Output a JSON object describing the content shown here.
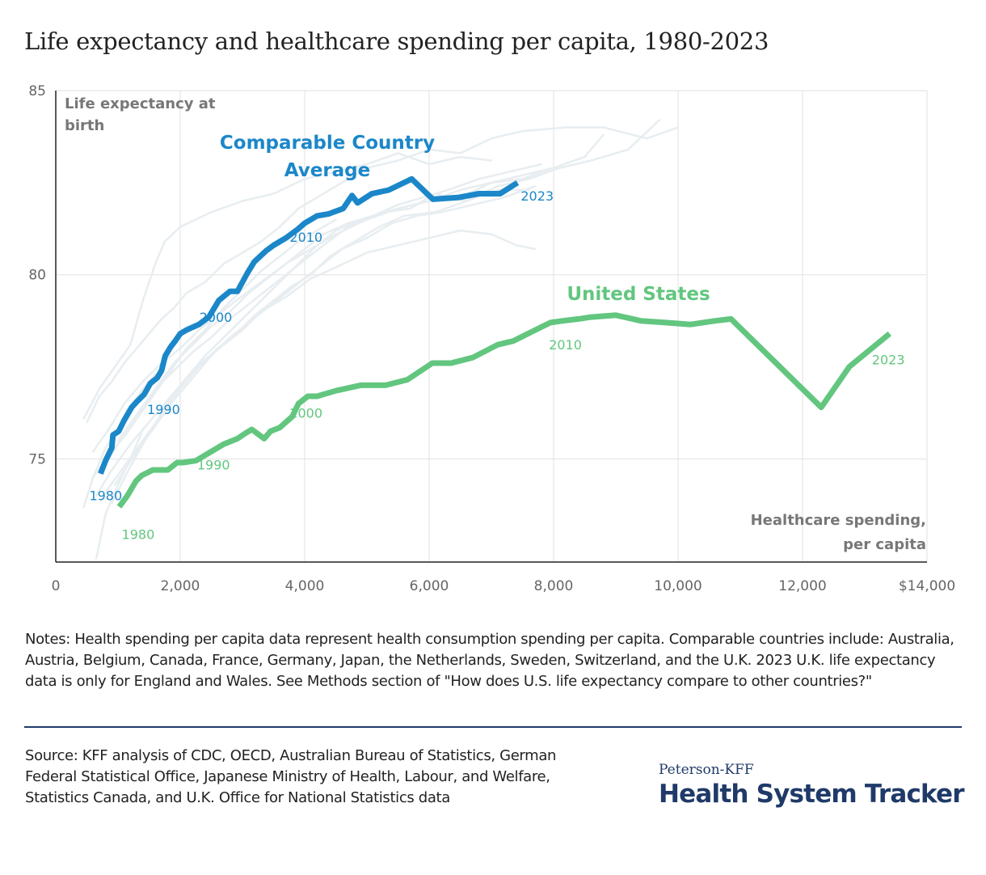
{
  "title": "Life expectancy and healthcare spending per capita, 1980-2023",
  "notes": "Notes: Health spending per capita data represent health consumption spending per capita. Comparable countries include: Australia, Austria, Belgium, Canada, France, Germany, Japan, the Netherlands, Sweden, Switzerland, and the U.K. 2023 U.K. life expectancy data is only for England and Wales. See Methods section of \"How does U.S. life expectancy compare to other countries?\"",
  "source": "Source: KFF analysis of CDC, OECD, Australian Bureau of Statistics, German Federal Statistical Office, Japanese Ministry of Health, Labour, and Welfare, Statistics Canada, and U.K. Office for National Statistics data",
  "brand": {
    "top": "Peterson-KFF",
    "main": "Health System Tracker"
  },
  "colors": {
    "comparable": "#1b87c9",
    "us": "#62c67f",
    "background_lines": "#e7edf0",
    "grid": "#e2e2e2",
    "axis": "#222222",
    "axis_label": "#777777",
    "tick_label": "#666666"
  },
  "chart_data": {
    "type": "line",
    "title": "Life expectancy and healthcare spending per capita, 1980-2023",
    "ylabel": "Life expectancy at birth",
    "xlabel": "Healthcare spending, per capita",
    "xlim": [
      0,
      14000
    ],
    "ylim": [
      72.2,
      85
    ],
    "x_ticks": [
      0,
      2000,
      4000,
      6000,
      8000,
      10000,
      12000,
      14000
    ],
    "x_tick_labels": [
      "0",
      "2,000",
      "4,000",
      "6,000",
      "8,000",
      "10,000",
      "12,000",
      "$14,000"
    ],
    "y_ticks": [
      75,
      80,
      85
    ],
    "y_tick_labels": [
      "75",
      "80",
      "85"
    ],
    "grid": true,
    "series": [
      {
        "name": "Comparable Country Average",
        "color": "#1b87c9",
        "x": [
          720,
          800,
          900,
          920,
          1010,
          1100,
          1220,
          1300,
          1420,
          1520,
          1630,
          1700,
          1760,
          1850,
          1920,
          2000,
          2100,
          2300,
          2460,
          2620,
          2800,
          2920,
          3080,
          3190,
          3380,
          3500,
          3700,
          3900,
          4000,
          4200,
          4380,
          4620,
          4760,
          4850,
          5080,
          5350,
          5720,
          6060,
          6480,
          6800,
          7140,
          7420
        ],
        "y": [
          74.6,
          74.95,
          75.3,
          75.65,
          75.75,
          76.05,
          76.4,
          76.55,
          76.75,
          77.05,
          77.2,
          77.4,
          77.8,
          78.05,
          78.2,
          78.4,
          78.5,
          78.65,
          78.85,
          79.3,
          79.55,
          79.55,
          80.05,
          80.35,
          80.65,
          80.8,
          81.0,
          81.25,
          81.4,
          81.6,
          81.65,
          81.8,
          82.15,
          81.95,
          82.2,
          82.3,
          82.6,
          82.05,
          82.1,
          82.2,
          82.2,
          82.5
        ],
        "year_labels": [
          {
            "year": "1980",
            "x": 720,
            "y": 74.6
          },
          {
            "year": "1990",
            "x": 1520,
            "y": 77.05
          },
          {
            "year": "2000",
            "x": 2800,
            "y": 79.55
          },
          {
            "year": "2010",
            "x": 4200,
            "y": 81.6
          },
          {
            "year": "2023",
            "x": 7420,
            "y": 82.5
          }
        ]
      },
      {
        "name": "United States",
        "color": "#62c67f",
        "x": [
          1020,
          1150,
          1290,
          1380,
          1560,
          1800,
          1950,
          2050,
          2250,
          2450,
          2700,
          2920,
          3050,
          3150,
          3350,
          3450,
          3600,
          3800,
          3900,
          4050,
          4200,
          4500,
          4900,
          5300,
          5650,
          6050,
          6350,
          6700,
          7100,
          7350,
          7650,
          7950,
          8150,
          8400,
          8600,
          9000,
          9400,
          9800,
          10200,
          10600,
          10850,
          12300,
          12750,
          13400
        ],
        "y": [
          73.7,
          74.0,
          74.4,
          74.55,
          74.7,
          74.7,
          74.9,
          74.9,
          74.95,
          75.15,
          75.4,
          75.55,
          75.7,
          75.8,
          75.55,
          75.75,
          75.85,
          76.15,
          76.5,
          76.7,
          76.7,
          76.85,
          77.0,
          77.0,
          77.15,
          77.6,
          77.6,
          77.75,
          78.1,
          78.2,
          78.45,
          78.7,
          78.75,
          78.8,
          78.85,
          78.9,
          78.75,
          78.7,
          78.65,
          78.75,
          78.8,
          76.4,
          77.5,
          78.4
        ],
        "year_labels": [
          {
            "year": "1980",
            "x": 1020,
            "y": 73.7
          },
          {
            "year": "1990",
            "x": 2920,
            "y": 75.55
          },
          {
            "year": "2000",
            "x": 4900,
            "y": 77.0
          },
          {
            "year": "2010",
            "x": 8600,
            "y": 78.85
          },
          {
            "year": "2023",
            "x": 13400,
            "y": 78.4
          }
        ]
      }
    ],
    "background_series": [
      {
        "x": [
          450,
          700,
          950,
          1200,
          1400,
          1600,
          1750,
          2000,
          2500,
          3000,
          3500,
          4000,
          4500,
          5000,
          5500,
          6000,
          6500,
          7000
        ],
        "y": [
          76.1,
          76.9,
          77.5,
          78.1,
          79.3,
          80.3,
          80.9,
          81.3,
          81.7,
          82.0,
          82.2,
          82.6,
          82.8,
          83.0,
          83.3,
          83.0,
          83.2,
          83.1
        ]
      },
      {
        "x": [
          500,
          700,
          900,
          1100,
          1300,
          1500,
          1700,
          1900,
          2100,
          2400,
          2700,
          3000,
          3300,
          3600,
          3900,
          4200,
          4500,
          5000,
          5500,
          6000,
          6500,
          7000,
          7500,
          8200,
          8800,
          9500,
          10000
        ],
        "y": [
          76.0,
          76.7,
          77.1,
          77.6,
          78.0,
          78.4,
          78.8,
          79.1,
          79.5,
          79.8,
          80.3,
          80.6,
          80.9,
          81.3,
          81.8,
          82.1,
          82.4,
          82.9,
          83.1,
          83.4,
          83.3,
          83.7,
          83.9,
          84.0,
          84.0,
          83.7,
          84.0
        ]
      },
      {
        "x": [
          700,
          1000,
          1300,
          1600,
          1900,
          2200,
          2500,
          2800,
          3100,
          3400,
          3700,
          4000,
          4300,
          4700,
          5100,
          5500,
          6000,
          6500,
          7000,
          7500,
          8000,
          8500,
          8800
        ],
        "y": [
          74.6,
          75.4,
          76.1,
          76.9,
          77.6,
          78.1,
          78.6,
          79.0,
          79.5,
          79.9,
          80.3,
          80.7,
          81.1,
          81.4,
          81.6,
          81.8,
          82.0,
          82.1,
          82.5,
          82.7,
          82.9,
          83.2,
          83.8
        ]
      },
      {
        "x": [
          800,
          1100,
          1400,
          1700,
          2000,
          2300,
          2600,
          2900,
          3200,
          3500,
          3800,
          4100,
          4400,
          4800,
          5200,
          5600,
          6100,
          6600,
          7100,
          7600,
          8100,
          8600,
          9200,
          9700
        ],
        "y": [
          74.1,
          74.8,
          75.5,
          76.2,
          76.9,
          77.5,
          78.0,
          78.4,
          78.9,
          79.3,
          79.7,
          80.0,
          80.5,
          80.9,
          81.3,
          81.6,
          81.7,
          82.0,
          82.4,
          82.6,
          82.9,
          83.1,
          83.4,
          84.2
        ]
      },
      {
        "x": [
          650,
          900,
          1200,
          1500,
          1800,
          2100,
          2400,
          2700,
          3000,
          3300,
          3700,
          4100,
          4500,
          5000,
          5500,
          6000,
          6500,
          7000,
          7400,
          7700
        ],
        "y": [
          74.0,
          74.7,
          75.4,
          76.0,
          76.6,
          77.2,
          77.7,
          78.1,
          78.5,
          79.0,
          79.4,
          79.9,
          80.2,
          80.6,
          80.8,
          81.0,
          81.2,
          81.1,
          80.8,
          80.7
        ]
      },
      {
        "x": [
          900,
          1200,
          1500,
          1800,
          2100,
          2400,
          2700,
          3000,
          3300,
          3600,
          3900,
          4200,
          4500,
          4900,
          5300,
          5700,
          6100,
          6600,
          7100,
          7600
        ],
        "y": [
          73.8,
          74.8,
          75.7,
          76.5,
          77.2,
          77.8,
          78.3,
          78.8,
          79.3,
          79.8,
          80.3,
          80.8,
          81.2,
          81.5,
          81.7,
          81.8,
          82.2,
          82.0,
          82.3,
          82.3
        ]
      },
      {
        "x": [
          950,
          1300,
          1600,
          1900,
          2200,
          2500,
          2800,
          3100,
          3400,
          3700,
          4000,
          4300,
          4600,
          5000,
          5400,
          5800,
          6200,
          6700,
          7200,
          7700
        ],
        "y": [
          74.3,
          75.2,
          75.9,
          76.6,
          77.2,
          77.8,
          78.3,
          78.7,
          79.1,
          79.5,
          79.9,
          80.3,
          80.7,
          81.0,
          81.4,
          81.6,
          81.7,
          81.9,
          82.1,
          82.4
        ]
      },
      {
        "x": [
          600,
          850,
          1100,
          1400,
          1700,
          2000,
          2300,
          2600,
          2900,
          3300,
          3700,
          4100,
          4500,
          5000,
          5500,
          6000,
          6500,
          7000,
          7500,
          8000
        ],
        "y": [
          75.2,
          75.8,
          76.5,
          77.1,
          77.6,
          78.0,
          78.5,
          78.9,
          79.3,
          79.8,
          80.3,
          80.7,
          81.1,
          81.5,
          81.8,
          82.0,
          82.3,
          82.5,
          82.6,
          82.9
        ]
      },
      {
        "x": [
          1000,
          1300,
          1600,
          1900,
          2200,
          2500,
          2800,
          3100,
          3400,
          3700,
          4000,
          4300,
          4700,
          5100,
          5500,
          5900,
          6300,
          6800,
          7300,
          7800
        ],
        "y": [
          75.5,
          76.2,
          76.9,
          77.4,
          77.9,
          78.3,
          78.8,
          79.2,
          79.6,
          80.0,
          80.4,
          80.8,
          81.3,
          81.6,
          81.9,
          82.1,
          82.3,
          82.6,
          82.8,
          83.0
        ]
      },
      {
        "x": [
          600,
          850,
          1100,
          1350,
          1600,
          1850,
          2100,
          2400,
          2700,
          3000,
          3300,
          3600,
          3900,
          4200,
          4500
        ],
        "y": [
          74.5,
          75.1,
          75.6,
          76.2,
          76.8,
          77.4,
          78.0,
          78.5,
          79.1,
          79.6,
          80.1,
          80.5,
          80.9,
          81.2,
          81.5
        ]
      },
      {
        "x": [
          450,
          600,
          800,
          1000,
          1200,
          1400,
          1600
        ],
        "y": [
          73.7,
          74.5,
          75.3,
          75.8,
          76.4,
          76.9,
          77.3
        ]
      },
      {
        "x": [
          650,
          800,
          1000,
          1200,
          1400
        ],
        "y": [
          72.3,
          73.5,
          74.3,
          75.0,
          75.8
        ]
      }
    ],
    "annotations": [
      {
        "text": "Comparable Country Average",
        "series": "Comparable Country Average"
      },
      {
        "text": "United States",
        "series": "United States"
      }
    ]
  }
}
